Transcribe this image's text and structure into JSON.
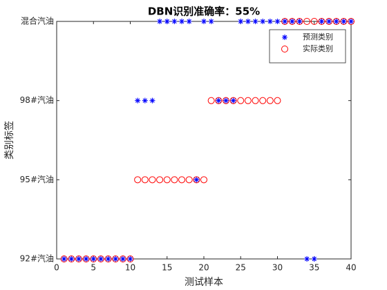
{
  "chart_data": {
    "type": "scatter",
    "title": "DBN识别准确率：55%",
    "xlabel": "测试样本",
    "ylabel": "类别标签",
    "x": [
      1,
      2,
      3,
      4,
      5,
      6,
      7,
      8,
      9,
      10,
      11,
      12,
      13,
      14,
      15,
      16,
      17,
      18,
      19,
      20,
      21,
      22,
      23,
      24,
      25,
      26,
      27,
      28,
      29,
      30,
      31,
      32,
      33,
      34,
      35,
      36,
      37,
      38,
      39,
      40
    ],
    "series": [
      {
        "name": "预测类别",
        "color": "#0000ff",
        "marker": "*",
        "values": [
          1,
          1,
          1,
          1,
          1,
          1,
          1,
          1,
          1,
          1,
          3,
          3,
          3,
          4,
          4,
          4,
          4,
          4,
          2,
          4,
          4,
          3,
          3,
          3,
          4,
          4,
          4,
          4,
          4,
          4,
          4,
          4,
          4,
          1,
          1,
          4,
          4,
          4,
          4,
          4
        ]
      },
      {
        "name": "实际类别",
        "color": "#ff0000",
        "marker": "o",
        "values": [
          1,
          1,
          1,
          1,
          1,
          1,
          1,
          1,
          1,
          1,
          2,
          2,
          2,
          2,
          2,
          2,
          2,
          2,
          2,
          2,
          3,
          3,
          3,
          3,
          3,
          3,
          3,
          3,
          3,
          3,
          4,
          4,
          4,
          4,
          4,
          4,
          4,
          4,
          4,
          4
        ]
      }
    ],
    "xlim": [
      0,
      40
    ],
    "xticks": [
      0,
      5,
      10,
      15,
      20,
      25,
      30,
      35,
      40
    ],
    "ylim": [
      1,
      4
    ],
    "yticks": [
      {
        "value": 1,
        "label": "92#汽油"
      },
      {
        "value": 2,
        "label": "95#汽油"
      },
      {
        "value": 3,
        "label": "98#汽油"
      },
      {
        "value": 4,
        "label": "混合汽油"
      }
    ],
    "legend": "northeast"
  }
}
